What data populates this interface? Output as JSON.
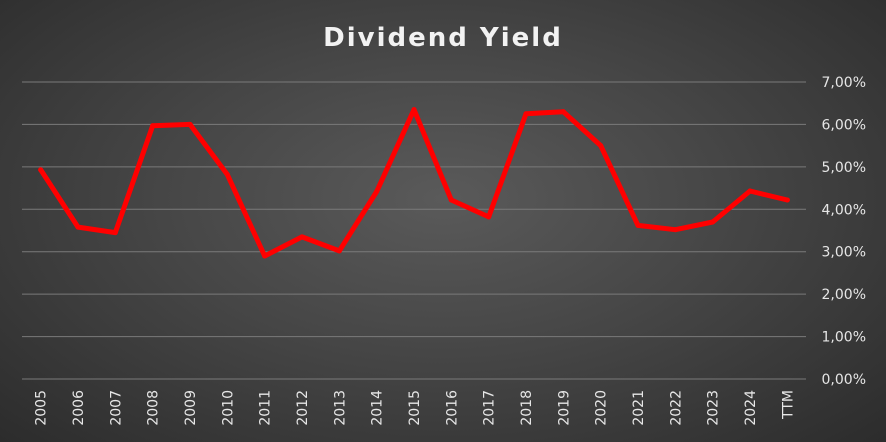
{
  "chart_data": {
    "type": "line",
    "title": "Dividend Yield",
    "xlabel": "",
    "ylabel": "",
    "categories": [
      "2005",
      "2006",
      "2007",
      "2008",
      "2009",
      "2010",
      "2011",
      "2012",
      "2013",
      "2014",
      "2015",
      "2016",
      "2017",
      "2018",
      "2019",
      "2020",
      "2021",
      "2022",
      "2023",
      "2024",
      "TTM"
    ],
    "series": [
      {
        "values": [
          4.93,
          3.58,
          3.45,
          5.97,
          6.0,
          4.82,
          2.9,
          3.35,
          3.02,
          4.42,
          6.35,
          4.22,
          3.82,
          6.25,
          6.3,
          5.5,
          3.62,
          3.52,
          3.7,
          4.43,
          4.22
        ]
      }
    ],
    "ylim": [
      0,
      7
    ],
    "yticks": [
      "0,00%",
      "1,00%",
      "2,00%",
      "3,00%",
      "4,00%",
      "5,00%",
      "6,00%",
      "7,00%"
    ],
    "y_axis_position": "right",
    "grid": true,
    "legend": "none",
    "colors": {
      "line": "#ff0000",
      "grid": "#7a7a7a",
      "text": "#e6e6e6"
    }
  }
}
